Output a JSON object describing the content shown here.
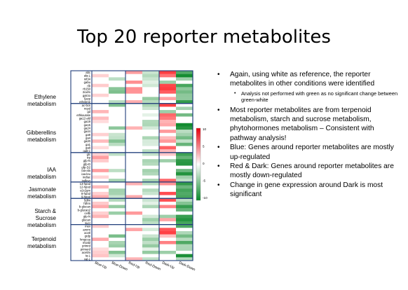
{
  "slide": {
    "title": "Top 20 reporter metabolites"
  },
  "heatmap": {
    "columns": [
      "Blue-Up",
      "Blue-Down",
      "Red-Up",
      "Red-Down",
      "Dark-Up",
      "Dark-Down"
    ],
    "groups": [
      {
        "label": "Ethylene\nmetabolism",
        "rows": [
          "abc",
          "ala-L",
          "nrl34",
          "gabu",
          "rib",
          "rb150",
          "2oxlm",
          "galcto",
          "5acp",
          "ethylene"
        ]
      },
      {
        "label": "Gibberellins\nmetabolism",
        "rows": [
          "ac-bcs",
          "ncpd",
          "gd",
          "ethkaurate",
          "ga12-ald",
          "ga19",
          "ga15",
          "ga24",
          "ga44",
          "ga9",
          "ga4",
          "ga20",
          "ga1",
          "ga8",
          "ga8-c"
        ]
      },
      {
        "label": "IAA\nmetabolism",
        "rows": [
          "glc",
          "trp",
          "gfp-N",
          "gfp-D",
          "gfp-D2",
          "iaa-ala",
          "iaa-leu",
          "indlac",
          "indlpyr"
        ]
      },
      {
        "label": "Jasmonate\nmetabolism",
        "rows": [
          "13-hpod",
          "12-hpod",
          "o2c2gm",
          "8-hpod",
          "9-hpod"
        ]
      },
      {
        "label": "Starch &\nSucrose\nmetabolism",
        "rows": [
          "5dlm",
          "7dhm",
          "b-glucan",
          "b-glucan2",
          "cellb",
          "glp-N",
          "glucan",
          "sucr"
        ]
      },
      {
        "label": "Terpenoid\nmetabolism",
        "rows": [
          "mev",
          "amrm",
          "acetl",
          "grdp",
          "hmgcoa",
          "mvald",
          "primrd",
          "primerd",
          "acetlm",
          "ta-L",
          "val-L"
        ]
      }
    ],
    "colorbar": {
      "ticks": [
        "10",
        "5",
        "0",
        "-5",
        "-10"
      ],
      "high_color": "#e8000d",
      "low_color": "#0a8a2a"
    }
  },
  "bullets": [
    {
      "level": 1,
      "text": "Again, using white as reference, the reporter metabolites in other conditions were identified"
    },
    {
      "level": 2,
      "text": "Analysis not performed with green as no significant change between green-white"
    },
    {
      "level": 1,
      "text": "Most reporter metabolites are from terpenoid metabolism, starch and sucrose metabolism, phytohormones metabolism – Consistent with pathway analysis!"
    },
    {
      "level": 1,
      "text": "Blue: Genes around reporter metabolites are mostly up-regulated"
    },
    {
      "level": 1,
      "text": "Red & Dark: Genes around reporter metabolites are mostly down-regulated"
    },
    {
      "level": 1,
      "text": "Change in gene expression around Dark is most significant"
    }
  ]
}
